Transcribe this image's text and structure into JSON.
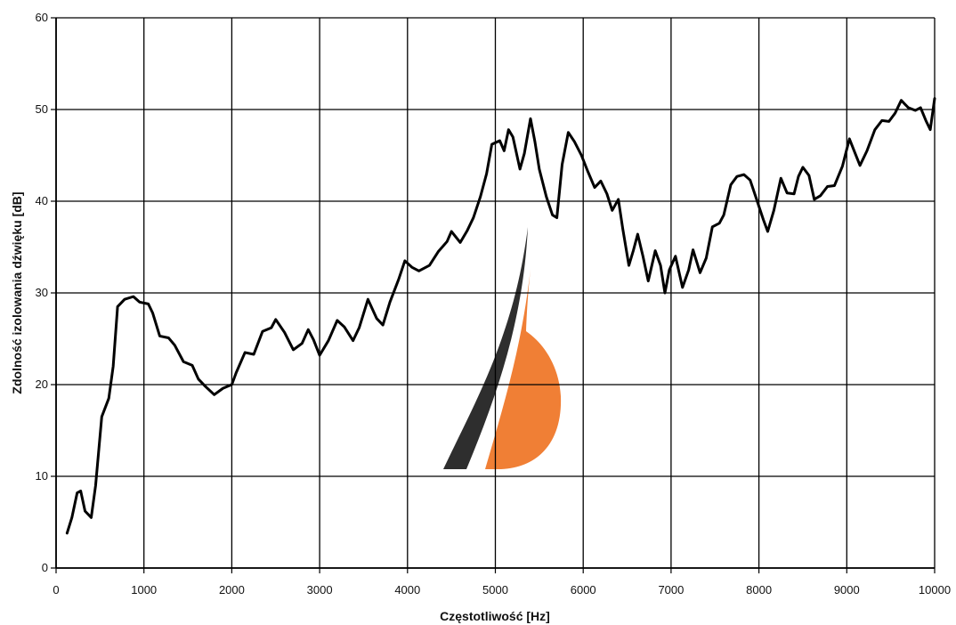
{
  "chart_data": {
    "type": "line",
    "title": "",
    "xlabel": "Częstotliwość [Hz]",
    "ylabel": "Zdolność izolowania dźwięku [dB]",
    "xlim": [
      0,
      10000
    ],
    "ylim": [
      0,
      60
    ],
    "x_ticks": [
      0,
      1000,
      2000,
      3000,
      4000,
      5000,
      6000,
      7000,
      8000,
      9000,
      10000
    ],
    "y_ticks": [
      0,
      10,
      20,
      30,
      40,
      50,
      60
    ],
    "grid": true,
    "legend": "none",
    "series": [
      {
        "line_color": "#000000",
        "points": [
          [
            125,
            3.8
          ],
          [
            180,
            5.5
          ],
          [
            240,
            8.2
          ],
          [
            280,
            8.4
          ],
          [
            330,
            6.2
          ],
          [
            400,
            5.5
          ],
          [
            450,
            9.0
          ],
          [
            520,
            16.5
          ],
          [
            600,
            18.5
          ],
          [
            650,
            22.0
          ],
          [
            700,
            28.5
          ],
          [
            780,
            29.3
          ],
          [
            880,
            29.6
          ],
          [
            950,
            29.0
          ],
          [
            1050,
            28.8
          ],
          [
            1100,
            27.8
          ],
          [
            1180,
            25.3
          ],
          [
            1280,
            25.1
          ],
          [
            1350,
            24.3
          ],
          [
            1450,
            22.5
          ],
          [
            1550,
            22.1
          ],
          [
            1620,
            20.6
          ],
          [
            1700,
            19.8
          ],
          [
            1800,
            18.9
          ],
          [
            1900,
            19.6
          ],
          [
            2000,
            20.0
          ],
          [
            2050,
            21.3
          ],
          [
            2150,
            23.5
          ],
          [
            2250,
            23.3
          ],
          [
            2350,
            25.8
          ],
          [
            2450,
            26.2
          ],
          [
            2500,
            27.1
          ],
          [
            2600,
            25.7
          ],
          [
            2700,
            23.8
          ],
          [
            2800,
            24.5
          ],
          [
            2870,
            26.0
          ],
          [
            2930,
            24.9
          ],
          [
            3000,
            23.2
          ],
          [
            3100,
            24.8
          ],
          [
            3200,
            27.0
          ],
          [
            3280,
            26.3
          ],
          [
            3380,
            24.8
          ],
          [
            3450,
            26.2
          ],
          [
            3550,
            29.3
          ],
          [
            3650,
            27.2
          ],
          [
            3720,
            26.5
          ],
          [
            3800,
            29.0
          ],
          [
            3900,
            31.5
          ],
          [
            3970,
            33.5
          ],
          [
            4050,
            32.8
          ],
          [
            4130,
            32.4
          ],
          [
            4250,
            33.0
          ],
          [
            4350,
            34.5
          ],
          [
            4450,
            35.6
          ],
          [
            4500,
            36.7
          ],
          [
            4600,
            35.5
          ],
          [
            4680,
            36.8
          ],
          [
            4750,
            38.2
          ],
          [
            4830,
            40.5
          ],
          [
            4900,
            43.0
          ],
          [
            4960,
            46.2
          ],
          [
            5050,
            46.6
          ],
          [
            5100,
            45.5
          ],
          [
            5150,
            47.8
          ],
          [
            5200,
            47.0
          ],
          [
            5280,
            43.5
          ],
          [
            5330,
            45.2
          ],
          [
            5400,
            49.0
          ],
          [
            5450,
            46.5
          ],
          [
            5500,
            43.5
          ],
          [
            5580,
            40.5
          ],
          [
            5650,
            38.5
          ],
          [
            5700,
            38.2
          ],
          [
            5760,
            44.0
          ],
          [
            5830,
            47.5
          ],
          [
            5900,
            46.5
          ],
          [
            5980,
            45.0
          ],
          [
            6050,
            43.3
          ],
          [
            6130,
            41.5
          ],
          [
            6200,
            42.2
          ],
          [
            6270,
            40.8
          ],
          [
            6330,
            39.0
          ],
          [
            6400,
            40.2
          ],
          [
            6450,
            37.0
          ],
          [
            6520,
            33.0
          ],
          [
            6570,
            34.6
          ],
          [
            6620,
            36.4
          ],
          [
            6680,
            34.0
          ],
          [
            6740,
            31.3
          ],
          [
            6820,
            34.6
          ],
          [
            6880,
            33.0
          ],
          [
            6930,
            30.0
          ],
          [
            6980,
            32.5
          ],
          [
            7050,
            34.0
          ],
          [
            7130,
            30.6
          ],
          [
            7200,
            32.5
          ],
          [
            7250,
            34.7
          ],
          [
            7330,
            32.2
          ],
          [
            7400,
            33.8
          ],
          [
            7470,
            37.2
          ],
          [
            7550,
            37.6
          ],
          [
            7600,
            38.5
          ],
          [
            7680,
            41.8
          ],
          [
            7750,
            42.7
          ],
          [
            7830,
            42.9
          ],
          [
            7900,
            42.3
          ],
          [
            7970,
            40.3
          ],
          [
            8050,
            38.0
          ],
          [
            8100,
            36.7
          ],
          [
            8170,
            39.0
          ],
          [
            8250,
            42.5
          ],
          [
            8320,
            40.9
          ],
          [
            8400,
            40.8
          ],
          [
            8450,
            42.7
          ],
          [
            8500,
            43.7
          ],
          [
            8570,
            42.8
          ],
          [
            8630,
            40.2
          ],
          [
            8700,
            40.6
          ],
          [
            8780,
            41.6
          ],
          [
            8860,
            41.7
          ],
          [
            8950,
            43.8
          ],
          [
            9030,
            46.8
          ],
          [
            9100,
            45.1
          ],
          [
            9150,
            43.9
          ],
          [
            9230,
            45.5
          ],
          [
            9320,
            47.8
          ],
          [
            9400,
            48.8
          ],
          [
            9480,
            48.7
          ],
          [
            9550,
            49.6
          ],
          [
            9620,
            51.0
          ],
          [
            9700,
            50.2
          ],
          [
            9780,
            49.9
          ],
          [
            9840,
            50.2
          ],
          [
            9900,
            48.8
          ],
          [
            9950,
            47.8
          ],
          [
            10000,
            51.2
          ]
        ]
      }
    ]
  }
}
